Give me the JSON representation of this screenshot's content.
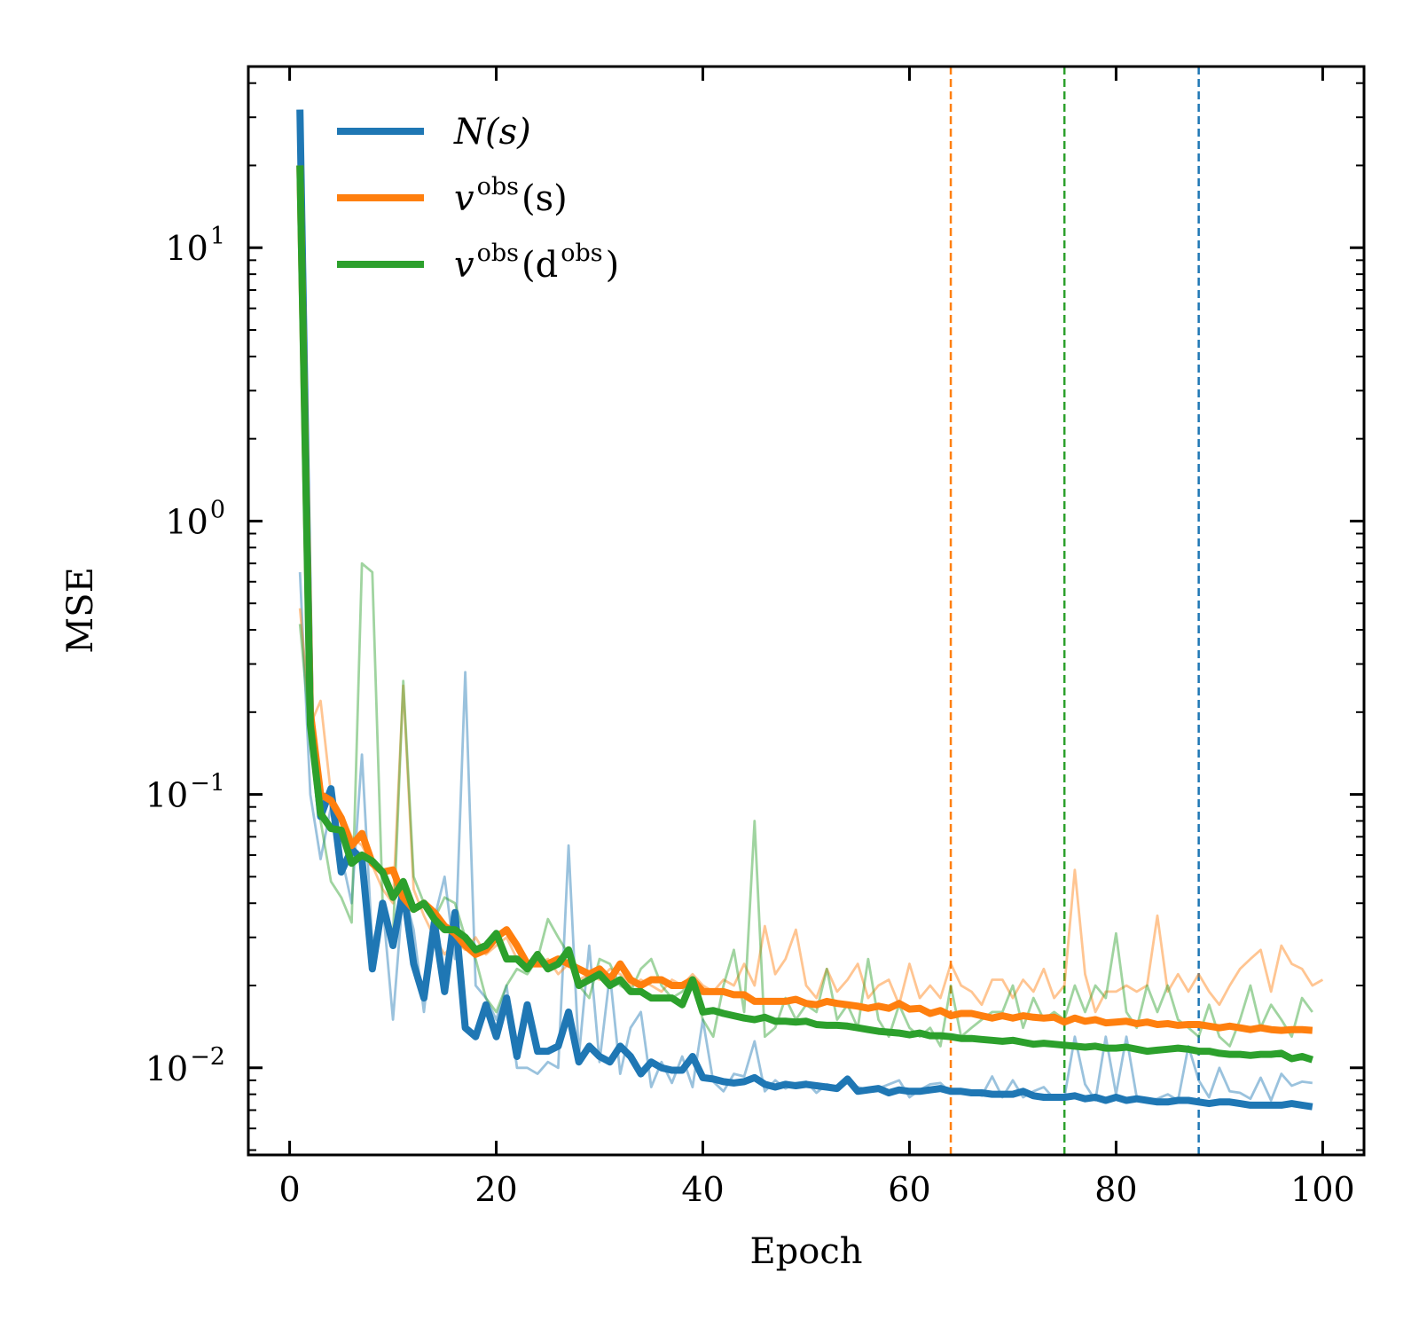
{
  "chart_data": {
    "type": "line",
    "title": "",
    "xlabel": "Epoch",
    "ylabel": "MSE",
    "yscale": "log",
    "xlim": [
      -4,
      104
    ],
    "ylim": [
      0.0048,
      46
    ],
    "x_ticks": [
      0,
      20,
      40,
      60,
      80,
      100
    ],
    "x_tick_labels": [
      "0",
      "20",
      "40",
      "60",
      "80",
      "100"
    ],
    "y_ticks": [
      0.01,
      0.1,
      1,
      10
    ],
    "y_tick_labels": [
      {
        "base": "10",
        "exp": "−2"
      },
      {
        "base": "10",
        "exp": "−1"
      },
      {
        "base": "10",
        "exp": "0"
      },
      {
        "base": "10",
        "exp": "1"
      }
    ],
    "grid": false,
    "legend_position": "top-left",
    "legend": [
      {
        "name": "N(s)",
        "label_main": "N(s)",
        "label_sup": "",
        "label_tail": "",
        "color": "#1f77b4"
      },
      {
        "name": "v^obs(s)",
        "label_main": "v",
        "label_sup": "obs",
        "label_tail": "(s)",
        "color": "#ff7f0e"
      },
      {
        "name": "v^obs(d^obs)",
        "label_main": "v",
        "label_sup": "obs",
        "label_tail": "(d",
        "label_sup2": "obs",
        "label_tail2": ")",
        "color": "#2ca02c"
      }
    ],
    "vertical_lines": [
      {
        "x": 64,
        "color": "#ff7f0e",
        "style": "dashed"
      },
      {
        "x": 75,
        "color": "#2ca02c",
        "style": "dashed"
      },
      {
        "x": 88,
        "color": "#1f77b4",
        "style": "dashed"
      }
    ],
    "series": [
      {
        "name": "N(s) smoothed",
        "color": "#1f77b4",
        "style": "thick",
        "x_start": 1,
        "values": [
          32,
          0.2,
          0.083,
          0.105,
          0.052,
          0.063,
          0.058,
          0.023,
          0.04,
          0.028,
          0.045,
          0.024,
          0.018,
          0.034,
          0.019,
          0.037,
          0.014,
          0.013,
          0.017,
          0.013,
          0.018,
          0.011,
          0.017,
          0.0115,
          0.0115,
          0.012,
          0.016,
          0.0105,
          0.012,
          0.011,
          0.0105,
          0.012,
          0.011,
          0.0095,
          0.0105,
          0.01,
          0.0098,
          0.0098,
          0.011,
          0.0092,
          0.0091,
          0.0089,
          0.0088,
          0.0089,
          0.0092,
          0.0087,
          0.0085,
          0.0087,
          0.0086,
          0.0087,
          0.0086,
          0.0085,
          0.0084,
          0.0091,
          0.0082,
          0.0083,
          0.0084,
          0.0081,
          0.0083,
          0.0082,
          0.0082,
          0.0083,
          0.0084,
          0.0082,
          0.0082,
          0.0081,
          0.0081,
          0.008,
          0.008,
          0.008,
          0.0082,
          0.0079,
          0.0078,
          0.0078,
          0.0078,
          0.0079,
          0.0077,
          0.0078,
          0.0076,
          0.0078,
          0.0076,
          0.0077,
          0.0076,
          0.0075,
          0.0075,
          0.0076,
          0.0076,
          0.0075,
          0.0074,
          0.0075,
          0.0075,
          0.0074,
          0.0073,
          0.0073,
          0.0073,
          0.0073,
          0.0074,
          0.0073,
          0.0072
        ]
      },
      {
        "name": "v^obs(s) smoothed",
        "color": "#ff7f0e",
        "style": "thick",
        "x_start": 1,
        "values": [
          20,
          0.2,
          0.1,
          0.095,
          0.082,
          0.065,
          0.072,
          0.056,
          0.052,
          0.053,
          0.042,
          0.038,
          0.04,
          0.037,
          0.033,
          0.031,
          0.028,
          0.026,
          0.027,
          0.03,
          0.032,
          0.028,
          0.024,
          0.024,
          0.024,
          0.025,
          0.024,
          0.023,
          0.022,
          0.023,
          0.021,
          0.024,
          0.021,
          0.02,
          0.021,
          0.021,
          0.02,
          0.02,
          0.021,
          0.019,
          0.019,
          0.019,
          0.0185,
          0.0185,
          0.0175,
          0.0175,
          0.0175,
          0.0175,
          0.0178,
          0.0172,
          0.017,
          0.0175,
          0.0172,
          0.017,
          0.0168,
          0.0165,
          0.0168,
          0.0165,
          0.0172,
          0.0164,
          0.0165,
          0.0158,
          0.0162,
          0.0155,
          0.0158,
          0.0158,
          0.0155,
          0.0152,
          0.0155,
          0.0152,
          0.0155,
          0.0153,
          0.0152,
          0.0153,
          0.0147,
          0.0152,
          0.0148,
          0.015,
          0.0146,
          0.0147,
          0.0148,
          0.0145,
          0.0147,
          0.0144,
          0.0145,
          0.0143,
          0.0144,
          0.0144,
          0.0142,
          0.014,
          0.0142,
          0.014,
          0.0138,
          0.014,
          0.0138,
          0.0137,
          0.0138,
          0.0138,
          0.0137
        ]
      },
      {
        "name": "v^obs(d^obs) smoothed",
        "color": "#2ca02c",
        "style": "thick",
        "x_start": 1,
        "values": [
          20,
          0.18,
          0.085,
          0.075,
          0.074,
          0.056,
          0.06,
          0.057,
          0.052,
          0.042,
          0.048,
          0.038,
          0.04,
          0.035,
          0.032,
          0.032,
          0.03,
          0.027,
          0.028,
          0.031,
          0.025,
          0.025,
          0.023,
          0.026,
          0.023,
          0.024,
          0.027,
          0.02,
          0.021,
          0.022,
          0.02,
          0.021,
          0.019,
          0.019,
          0.018,
          0.018,
          0.018,
          0.017,
          0.021,
          0.016,
          0.0162,
          0.0158,
          0.0155,
          0.0152,
          0.015,
          0.0153,
          0.0148,
          0.0148,
          0.0147,
          0.0148,
          0.0144,
          0.0143,
          0.0143,
          0.0142,
          0.014,
          0.0138,
          0.0136,
          0.0135,
          0.0134,
          0.0132,
          0.0134,
          0.0131,
          0.0131,
          0.013,
          0.0128,
          0.0128,
          0.0127,
          0.0126,
          0.0125,
          0.0126,
          0.0124,
          0.0122,
          0.0123,
          0.0122,
          0.0121,
          0.012,
          0.0119,
          0.012,
          0.0118,
          0.0118,
          0.0119,
          0.0117,
          0.0115,
          0.0116,
          0.0117,
          0.0118,
          0.0117,
          0.0115,
          0.0115,
          0.0113,
          0.0112,
          0.0112,
          0.0111,
          0.0112,
          0.0112,
          0.0113,
          0.0108,
          0.011,
          0.0107
        ]
      },
      {
        "name": "N(s) raw",
        "color": "#1f77b4",
        "style": "thin",
        "x_start": 1,
        "values": [
          0.65,
          0.1,
          0.058,
          0.09,
          0.06,
          0.04,
          0.14,
          0.028,
          0.04,
          0.015,
          0.045,
          0.032,
          0.016,
          0.035,
          0.05,
          0.025,
          0.28,
          0.02,
          0.018,
          0.015,
          0.02,
          0.01,
          0.01,
          0.0095,
          0.0105,
          0.01,
          0.065,
          0.011,
          0.028,
          0.0105,
          0.022,
          0.0095,
          0.014,
          0.016,
          0.0085,
          0.0105,
          0.0088,
          0.011,
          0.0085,
          0.015,
          0.0089,
          0.0082,
          0.0095,
          0.0093,
          0.0125,
          0.0082,
          0.009,
          0.0084,
          0.0088,
          0.0089,
          0.0081,
          0.0087,
          0.0085,
          0.0088,
          0.0085,
          0.0083,
          0.0084,
          0.0087,
          0.009,
          0.0078,
          0.0083,
          0.0087,
          0.0088,
          0.0081,
          0.0083,
          0.0081,
          0.0079,
          0.0093,
          0.0078,
          0.009,
          0.0078,
          0.0082,
          0.0085,
          0.0077,
          0.0078,
          0.013,
          0.0087,
          0.0076,
          0.013,
          0.008,
          0.013,
          0.0078,
          0.0076,
          0.0077,
          0.008,
          0.0076,
          0.012,
          0.009,
          0.0078,
          0.01,
          0.0082,
          0.0081,
          0.0077,
          0.0092,
          0.0076,
          0.0095,
          0.0086,
          0.0089,
          0.0088
        ]
      },
      {
        "name": "v^obs(s) raw",
        "color": "#ff7f0e",
        "style": "thin",
        "x_start": 1,
        "values": [
          0.48,
          0.18,
          0.22,
          0.1,
          0.085,
          0.07,
          0.065,
          0.055,
          0.045,
          0.04,
          0.25,
          0.045,
          0.036,
          0.03,
          0.026,
          0.029,
          0.027,
          0.03,
          0.026,
          0.028,
          0.03,
          0.025,
          0.024,
          0.024,
          0.025,
          0.022,
          0.024,
          0.021,
          0.022,
          0.021,
          0.023,
          0.022,
          0.02,
          0.021,
          0.02,
          0.019,
          0.021,
          0.02,
          0.022,
          0.02,
          0.019,
          0.021,
          0.02,
          0.024,
          0.02,
          0.033,
          0.022,
          0.025,
          0.032,
          0.02,
          0.018,
          0.023,
          0.019,
          0.021,
          0.024,
          0.018,
          0.02,
          0.021,
          0.017,
          0.024,
          0.018,
          0.02,
          0.018,
          0.024,
          0.02,
          0.019,
          0.017,
          0.021,
          0.021,
          0.018,
          0.021,
          0.019,
          0.023,
          0.018,
          0.02,
          0.053,
          0.022,
          0.016,
          0.019,
          0.019,
          0.02,
          0.019,
          0.02,
          0.036,
          0.019,
          0.022,
          0.019,
          0.022,
          0.019,
          0.017,
          0.02,
          0.023,
          0.025,
          0.027,
          0.019,
          0.028,
          0.024,
          0.023,
          0.02,
          0.021
        ]
      },
      {
        "name": "v^obs(d^obs) raw",
        "color": "#2ca02c",
        "style": "thin",
        "x_start": 1,
        "values": [
          0.42,
          0.16,
          0.08,
          0.048,
          0.042,
          0.034,
          0.7,
          0.65,
          0.04,
          0.03,
          0.26,
          0.05,
          0.04,
          0.035,
          0.042,
          0.04,
          0.03,
          0.025,
          0.018,
          0.016,
          0.02,
          0.023,
          0.022,
          0.025,
          0.035,
          0.03,
          0.026,
          0.02,
          0.018,
          0.025,
          0.024,
          0.02,
          0.019,
          0.023,
          0.025,
          0.02,
          0.018,
          0.019,
          0.021,
          0.015,
          0.013,
          0.02,
          0.027,
          0.016,
          0.08,
          0.013,
          0.014,
          0.018,
          0.015,
          0.017,
          0.016,
          0.023,
          0.015,
          0.017,
          0.014,
          0.025,
          0.015,
          0.013,
          0.017,
          0.014,
          0.013,
          0.014,
          0.012,
          0.02,
          0.013,
          0.014,
          0.015,
          0.016,
          0.016,
          0.02,
          0.014,
          0.018,
          0.015,
          0.016,
          0.015,
          0.02,
          0.016,
          0.02,
          0.018,
          0.031,
          0.016,
          0.014,
          0.02,
          0.016,
          0.02,
          0.015,
          0.014,
          0.013,
          0.017,
          0.013,
          0.012,
          0.015,
          0.02,
          0.014,
          0.017,
          0.015,
          0.013,
          0.018,
          0.016
        ]
      }
    ]
  }
}
